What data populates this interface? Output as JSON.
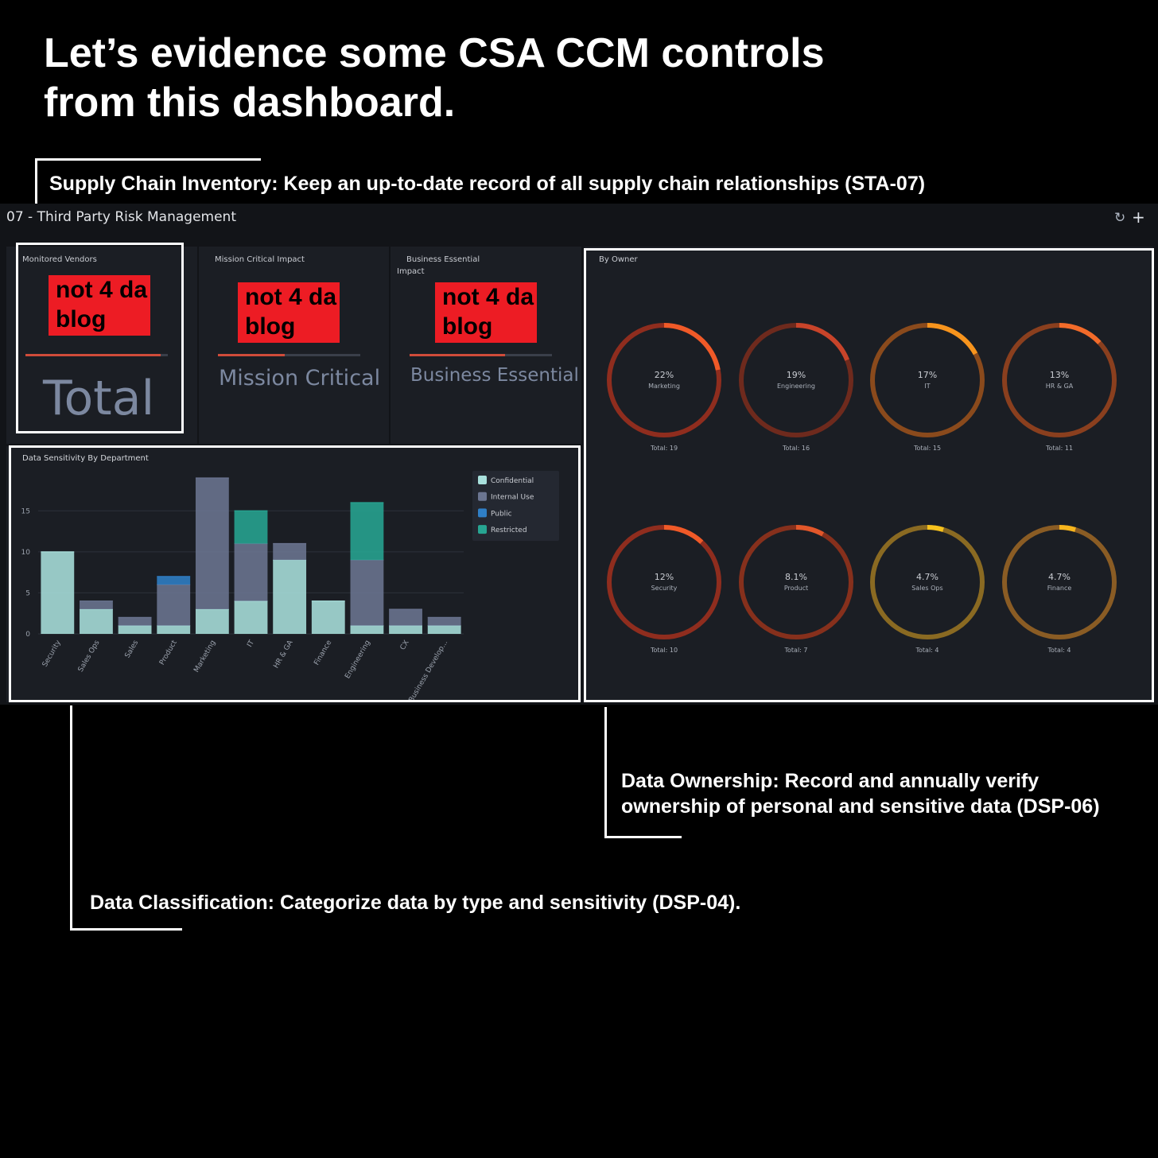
{
  "headline": {
    "line1": "Let’s evidence some CSA CCM controls",
    "line2": "from this dashboard."
  },
  "annotations": {
    "supply_chain": "Supply Chain Inventory: Keep an up-to-date record of all supply chain relationships (STA-07)",
    "ownership_line1": "Data Ownership: Record and annually verify",
    "ownership_line2": "ownership of personal and sensitive data (DSP-06)",
    "classification": "Data Classification: Categorize data by type and sensitivity (DSP-04)."
  },
  "dashboard": {
    "title": "07 - Third Party Risk Management",
    "refresh_icon": "refresh-icon",
    "add_icon": "plus-icon",
    "metrics": [
      {
        "label": "Monitored Vendors",
        "redacted": "not 4 da blog",
        "big_label": "Total",
        "fill": 0.95
      },
      {
        "label": "Mission Critical Impact",
        "redacted": "not 4 da blog",
        "big_label": "Mission Critical",
        "fill": 0.47
      },
      {
        "label_line1": "Business Essential",
        "label_line2": "Impact",
        "redacted": "not 4 da blog",
        "big_label": "Business Essential",
        "fill": 0.67
      }
    ]
  },
  "colors": {
    "confidential": "#a8e0dc",
    "internal_use": "#6b7591",
    "public": "#2f7fc6",
    "restricted": "#27a592",
    "ring_base_red": "#8f2d1e",
    "ring_base_gold": "#8a6a22"
  },
  "chart_data": [
    {
      "type": "bar",
      "title": "Data Sensitivity By Department",
      "stacked": true,
      "categories": [
        "Security",
        "Sales Ops",
        "Sales",
        "Product",
        "Marketing",
        "IT",
        "HR & GA",
        "Finance",
        "Engineering",
        "CX",
        "Business Develop..."
      ],
      "series": [
        {
          "name": "Confidential",
          "values": [
            10,
            3,
            1,
            1,
            3,
            4,
            9,
            4,
            1,
            1,
            1
          ]
        },
        {
          "name": "Internal Use",
          "values": [
            0,
            1,
            1,
            5,
            16,
            7,
            2,
            0,
            8,
            2,
            1
          ]
        },
        {
          "name": "Public",
          "values": [
            0,
            0,
            0,
            1,
            0,
            0,
            0,
            0,
            0,
            0,
            0
          ]
        },
        {
          "name": "Restricted",
          "values": [
            0,
            0,
            0,
            0,
            0,
            4,
            0,
            0,
            7,
            0,
            0
          ]
        }
      ],
      "yticks": [
        0,
        5,
        10,
        15
      ],
      "ylim": [
        0,
        19
      ],
      "legend": "top-right"
    },
    {
      "type": "pie",
      "title": "By Owner",
      "style": "donut-grid",
      "items": [
        {
          "pct": "22%",
          "value": 22,
          "name": "Marketing",
          "total": "Total: 19"
        },
        {
          "pct": "19%",
          "value": 19,
          "name": "Engineering",
          "total": "Total: 16"
        },
        {
          "pct": "17%",
          "value": 17,
          "name": "IT",
          "total": "Total: 15"
        },
        {
          "pct": "13%",
          "value": 13,
          "name": "HR & GA",
          "total": "Total: 11"
        },
        {
          "pct": "12%",
          "value": 12,
          "name": "Security",
          "total": "Total: 10"
        },
        {
          "pct": "8.1%",
          "value": 8.1,
          "name": "Product",
          "total": "Total: 7"
        },
        {
          "pct": "4.7%",
          "value": 4.7,
          "name": "Sales Ops",
          "total": "Total: 4"
        },
        {
          "pct": "4.7%",
          "value": 4.7,
          "name": "Finance",
          "total": "Total: 4"
        }
      ]
    }
  ]
}
